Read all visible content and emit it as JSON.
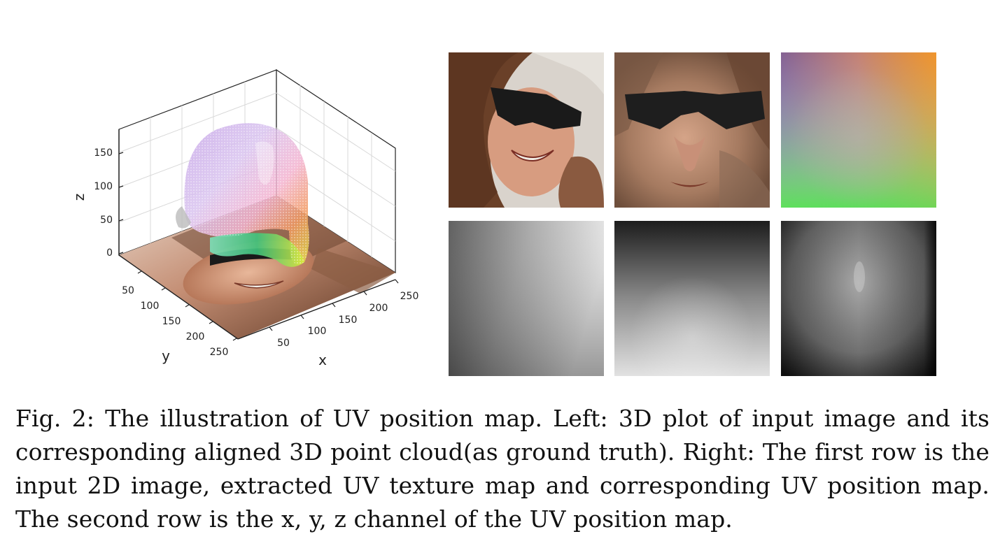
{
  "figure": {
    "caption_label": "Fig. 2:",
    "caption_text": "The illustration of UV position map. Left: 3D plot of input image and its corresponding aligned 3D point cloud(as ground truth). Right: The first row is the input 2D image, extracted UV texture map and corresponding UV position map. The second row is the x, y, z channel of the UV position map."
  },
  "plot3d": {
    "zlabel": "z",
    "xlabel": "x",
    "ylabel": "y",
    "z_ticks": [
      "0",
      "50",
      "100",
      "150"
    ],
    "x_ticks": [
      "50",
      "100",
      "150",
      "200",
      "250"
    ],
    "y_ticks": [
      "50",
      "100",
      "150",
      "200",
      "250"
    ],
    "z_range": [
      0,
      180
    ],
    "x_range": [
      0,
      256
    ],
    "y_range": [
      0,
      256
    ],
    "grid": true
  },
  "panels": {
    "row1": [
      "input-2d-image",
      "uv-texture-map",
      "uv-position-map"
    ],
    "row2": [
      "x-channel",
      "y-channel",
      "z-channel"
    ]
  }
}
